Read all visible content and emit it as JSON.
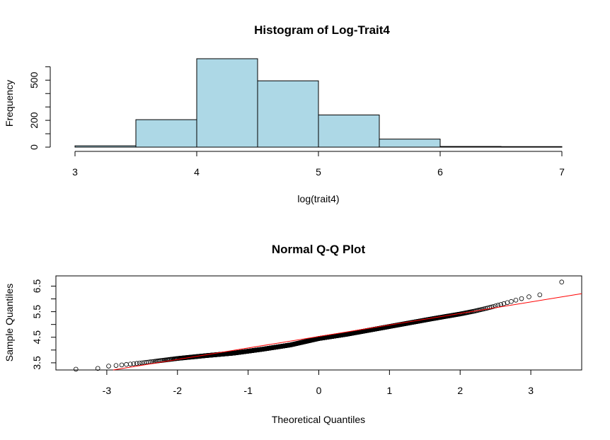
{
  "chart_data": [
    {
      "type": "bar",
      "title": "Histogram of Log-Trait4",
      "xlabel": "log(trait4)",
      "ylabel": "Frequency",
      "bins": [
        {
          "from": 3.0,
          "to": 3.5,
          "count": 10
        },
        {
          "from": 3.5,
          "to": 4.0,
          "count": 205
        },
        {
          "from": 4.0,
          "to": 4.5,
          "count": 660
        },
        {
          "from": 4.5,
          "to": 5.0,
          "count": 495
        },
        {
          "from": 5.0,
          "to": 5.5,
          "count": 240
        },
        {
          "from": 5.5,
          "to": 6.0,
          "count": 60
        },
        {
          "from": 6.0,
          "to": 6.5,
          "count": 5
        },
        {
          "from": 6.5,
          "to": 7.0,
          "count": 4
        }
      ],
      "xlim": [
        3,
        7
      ],
      "ylim": [
        0,
        660
      ],
      "x_ticks": [
        "3",
        "4",
        "5",
        "6",
        "7"
      ],
      "x_tick_values": [
        3,
        4,
        5,
        6,
        7
      ],
      "y_ticks": [
        "0",
        "200",
        "500"
      ],
      "y_tick_values": [
        0,
        200,
        500
      ],
      "y_minor_ticks": [
        100,
        300,
        400,
        600
      ],
      "bar_color": "#add8e6",
      "edge_color": "#000000",
      "grid": false
    },
    {
      "type": "scatter",
      "title": "Normal Q-Q Plot",
      "xlabel": "Theoretical Quantiles",
      "ylabel": "Sample Quantiles",
      "xlim": [
        -3.0,
        3.72
      ],
      "ylim": [
        3.22,
        6.9
      ],
      "x_ticks": [
        "-3",
        "-2",
        "-1",
        "0",
        "1",
        "2",
        "3"
      ],
      "x_tick_values": [
        -3,
        -2,
        -1,
        0,
        1,
        2,
        3
      ],
      "y_ticks": [
        "3.5",
        "4.5",
        "5.5",
        "6.5"
      ],
      "y_tick_values": [
        3.5,
        4.5,
        5.5,
        6.5
      ],
      "y_minor_ticks": [
        4.0,
        5.0,
        6.0
      ],
      "n_points": 1700,
      "reference_line": {
        "intercept": 4.53,
        "slope": 0.45,
        "color": "#ff0000"
      },
      "quantile_curve": [
        [
          -3.45,
          3.25
        ],
        [
          -3.13,
          3.28
        ],
        [
          -2.98,
          3.37
        ],
        [
          -2.85,
          3.4
        ],
        [
          -2.6,
          3.47
        ],
        [
          -2.4,
          3.53
        ],
        [
          -2.2,
          3.6
        ],
        [
          -2.0,
          3.67
        ],
        [
          -1.6,
          3.78
        ],
        [
          -1.2,
          3.88
        ],
        [
          -0.8,
          4.03
        ],
        [
          -0.4,
          4.2
        ],
        [
          0.0,
          4.45
        ],
        [
          0.4,
          4.62
        ],
        [
          0.8,
          4.82
        ],
        [
          1.2,
          5.02
        ],
        [
          1.6,
          5.22
        ],
        [
          2.0,
          5.41
        ],
        [
          2.2,
          5.52
        ],
        [
          2.4,
          5.65
        ],
        [
          2.6,
          5.8
        ],
        [
          2.8,
          5.96
        ],
        [
          2.95,
          6.07
        ],
        [
          3.13,
          6.16
        ],
        [
          3.45,
          6.68
        ]
      ],
      "marker": "open-circle",
      "grid": false
    }
  ]
}
